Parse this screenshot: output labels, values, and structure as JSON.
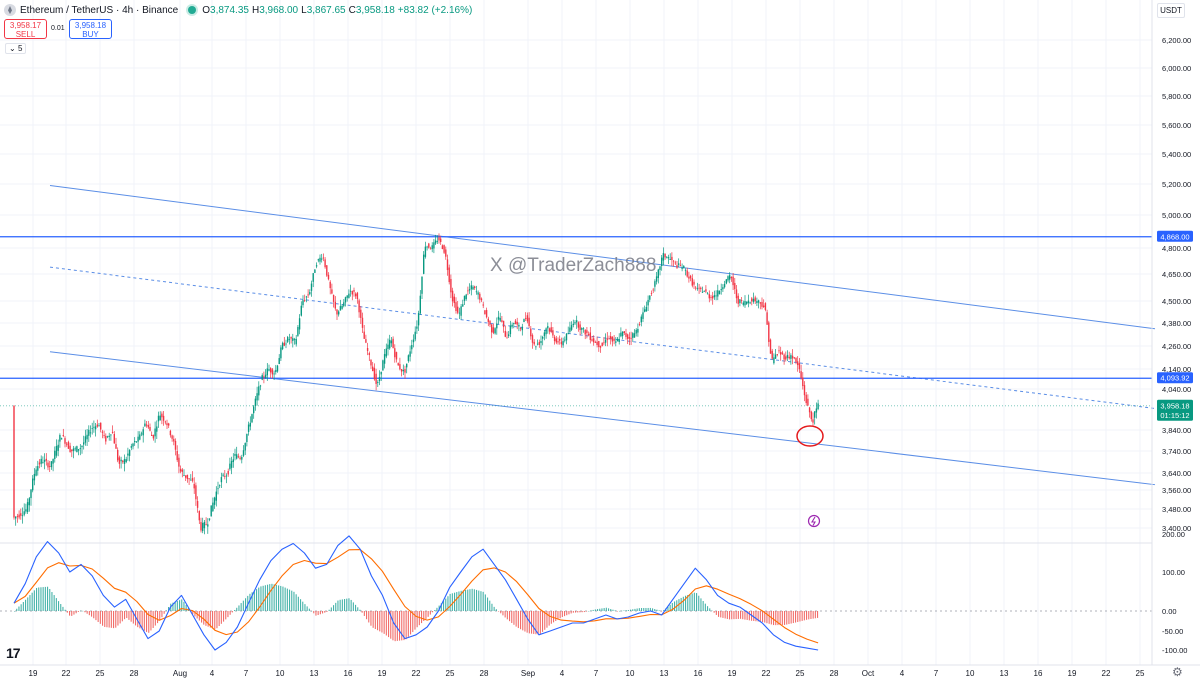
{
  "header": {
    "symbol": "Ethereum / TetherUS · 4h · Binance",
    "ohlc": [
      {
        "k": "O",
        "v": "3,874.35"
      },
      {
        "k": "H",
        "v": "3,968.00"
      },
      {
        "k": "L",
        "v": "3,867.65"
      },
      {
        "k": "C",
        "v": "3,958.18"
      }
    ],
    "change": "+83.82 (+2.16%)",
    "sell_price": "3,958.17",
    "sell_label": "SELL",
    "buy_price": "3,958.18",
    "buy_label": "BUY",
    "spread": "0.01",
    "indicator_count": "5",
    "currency": "USDT"
  },
  "watermark": "X @TraderZach888",
  "colors": {
    "up": "#089981",
    "down": "#f23645",
    "trendline": "#5b8ee6",
    "level": "#2962ff",
    "macd": "#2962ff",
    "signal": "#ff6d00",
    "annotation": "#e41a1c",
    "grid": "#f0f3fa"
  },
  "chart_data": [
    {
      "type": "candlestick",
      "title": "Ethereum / TetherUS · 4h · Binance",
      "ylim": [
        3400,
        6300
      ],
      "price_ticks": [
        "6,200.00",
        "6,000.00",
        "5,800.00",
        "5,600.00",
        "5,400.00",
        "5,200.00",
        "5,000.00",
        "4,800.00",
        "4,650.00",
        "4,500.00",
        "4,380.00",
        "4,260.00",
        "4,140.00",
        "4,040.00",
        "3,840.00",
        "3,740.00",
        "3,640.00",
        "3,560.00",
        "3,480.00",
        "3,400.00"
      ],
      "date_ticks": [
        "19",
        "22",
        "25",
        "28",
        "Aug",
        "4",
        "7",
        "10",
        "13",
        "16",
        "19",
        "22",
        "25",
        "28",
        "Sep",
        "4",
        "7",
        "10",
        "13",
        "16",
        "19",
        "22",
        "25",
        "28",
        "Oct",
        "4",
        "7",
        "10",
        "13",
        "16",
        "19",
        "22",
        "25"
      ],
      "price_path": [
        [
          0,
          3440
        ],
        [
          8,
          3480
        ],
        [
          13,
          3660
        ],
        [
          17,
          3700
        ],
        [
          22,
          3670
        ],
        [
          28,
          3820
        ],
        [
          34,
          3740
        ],
        [
          40,
          3760
        ],
        [
          46,
          3850
        ],
        [
          50,
          3870
        ],
        [
          54,
          3790
        ],
        [
          58,
          3840
        ],
        [
          62,
          3680
        ],
        [
          66,
          3700
        ],
        [
          70,
          3770
        ],
        [
          74,
          3800
        ],
        [
          78,
          3880
        ],
        [
          82,
          3800
        ],
        [
          86,
          3920
        ],
        [
          90,
          3880
        ],
        [
          94,
          3790
        ],
        [
          98,
          3650
        ],
        [
          102,
          3620
        ],
        [
          106,
          3590
        ],
        [
          110,
          3400
        ],
        [
          114,
          3420
        ],
        [
          118,
          3520
        ],
        [
          122,
          3610
        ],
        [
          126,
          3640
        ],
        [
          130,
          3720
        ],
        [
          134,
          3710
        ],
        [
          138,
          3840
        ],
        [
          142,
          3970
        ],
        [
          146,
          4090
        ],
        [
          150,
          4140
        ],
        [
          154,
          4120
        ],
        [
          158,
          4260
        ],
        [
          162,
          4300
        ],
        [
          166,
          4280
        ],
        [
          170,
          4500
        ],
        [
          174,
          4540
        ],
        [
          178,
          4710
        ],
        [
          182,
          4760
        ],
        [
          186,
          4580
        ],
        [
          190,
          4430
        ],
        [
          194,
          4480
        ],
        [
          198,
          4560
        ],
        [
          202,
          4530
        ],
        [
          206,
          4310
        ],
        [
          210,
          4180
        ],
        [
          214,
          4050
        ],
        [
          218,
          4200
        ],
        [
          222,
          4300
        ],
        [
          226,
          4160
        ],
        [
          230,
          4120
        ],
        [
          234,
          4260
        ],
        [
          238,
          4390
        ],
        [
          242,
          4820
        ],
        [
          246,
          4800
        ],
        [
          250,
          4860
        ],
        [
          254,
          4770
        ],
        [
          258,
          4520
        ],
        [
          262,
          4420
        ],
        [
          266,
          4540
        ],
        [
          270,
          4580
        ],
        [
          274,
          4530
        ],
        [
          278,
          4420
        ],
        [
          282,
          4330
        ],
        [
          286,
          4420
        ],
        [
          290,
          4300
        ],
        [
          294,
          4390
        ],
        [
          298,
          4350
        ],
        [
          302,
          4420
        ],
        [
          306,
          4260
        ],
        [
          310,
          4280
        ],
        [
          314,
          4370
        ],
        [
          318,
          4300
        ],
        [
          322,
          4270
        ],
        [
          326,
          4320
        ],
        [
          330,
          4400
        ],
        [
          334,
          4350
        ],
        [
          338,
          4320
        ],
        [
          342,
          4280
        ],
        [
          346,
          4260
        ],
        [
          350,
          4310
        ],
        [
          354,
          4270
        ],
        [
          358,
          4330
        ],
        [
          362,
          4300
        ],
        [
          366,
          4330
        ],
        [
          370,
          4420
        ],
        [
          374,
          4520
        ],
        [
          378,
          4610
        ],
        [
          382,
          4760
        ],
        [
          386,
          4740
        ],
        [
          390,
          4700
        ],
        [
          394,
          4690
        ],
        [
          398,
          4620
        ],
        [
          402,
          4560
        ],
        [
          406,
          4560
        ],
        [
          410,
          4520
        ],
        [
          414,
          4540
        ],
        [
          418,
          4600
        ],
        [
          422,
          4640
        ],
        [
          426,
          4500
        ],
        [
          430,
          4490
        ],
        [
          434,
          4510
        ],
        [
          438,
          4500
        ],
        [
          442,
          4470
        ],
        [
          446,
          4180
        ],
        [
          450,
          4230
        ],
        [
          454,
          4200
        ],
        [
          458,
          4210
        ],
        [
          462,
          4150
        ],
        [
          466,
          3990
        ],
        [
          470,
          3880
        ],
        [
          473,
          3958
        ]
      ],
      "levels": [
        {
          "price": 4868.0,
          "label": "4,868.00"
        },
        {
          "price": 4093.92,
          "label": "4,093.92"
        }
      ],
      "last_price": {
        "label": "3,958.18",
        "countdown": "01:15:12"
      },
      "trendlines": [
        {
          "from": [
            "Jul 21",
            5190
          ],
          "to": [
            "Oct 25",
            4350
          ],
          "style": "solid"
        },
        {
          "from": [
            "Jul 21",
            4690
          ],
          "to": [
            "Oct 25",
            3945
          ],
          "style": "dashed"
        },
        {
          "from": [
            "Jul 21",
            4230
          ],
          "to": [
            "Oct 25",
            3585
          ],
          "style": "solid"
        }
      ],
      "annotation": {
        "type": "circle",
        "at": [
          "Sep 26",
          3800
        ]
      }
    },
    {
      "type": "macd",
      "ylim": [
        -120,
        210
      ],
      "ticks": [
        "200.00",
        "100.00",
        "0.00",
        "-50.00",
        "-100.00"
      ],
      "macd": [
        20,
        70,
        140,
        180,
        150,
        100,
        120,
        90,
        40,
        10,
        30,
        -20,
        -70,
        -50,
        10,
        40,
        -10,
        -60,
        -100,
        -80,
        -40,
        20,
        80,
        130,
        160,
        175,
        150,
        110,
        120,
        170,
        195,
        160,
        90,
        40,
        -30,
        -70,
        -60,
        -40,
        0,
        60,
        100,
        140,
        160,
        120,
        80,
        30,
        -20,
        -60,
        -50,
        -40,
        -30,
        -30,
        -20,
        -10,
        -20,
        -15,
        -5,
        0,
        -10,
        30,
        70,
        110,
        80,
        40,
        20,
        10,
        -10,
        -30,
        -60,
        -80,
        -90,
        -95,
        -100
      ]
    }
  ]
}
